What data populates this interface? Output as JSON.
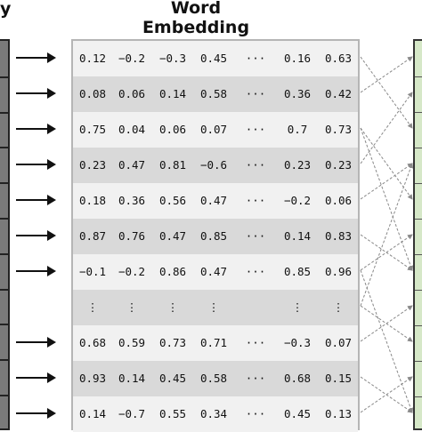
{
  "header": {
    "title": "Word Embedding",
    "left_fragment": "y"
  },
  "matrix": {
    "rows": [
      [
        "0.12",
        "−0.2",
        "−0.3",
        "0.45",
        "···",
        "0.16",
        "0.63"
      ],
      [
        "0.08",
        "0.06",
        "0.14",
        "0.58",
        "···",
        "0.36",
        "0.42"
      ],
      [
        "0.75",
        "0.04",
        "0.06",
        "0.07",
        "···",
        "0.7",
        "0.73"
      ],
      [
        "0.23",
        "0.47",
        "0.81",
        "−0.6",
        "···",
        "0.23",
        "0.23"
      ],
      [
        "0.18",
        "0.36",
        "0.56",
        "0.47",
        "···",
        "−0.2",
        "0.06"
      ],
      [
        "0.87",
        "0.76",
        "0.47",
        "0.85",
        "···",
        "0.14",
        "0.83"
      ],
      [
        "−0.1",
        "−0.2",
        "0.86",
        "0.47",
        "···",
        "0.85",
        "0.96"
      ],
      [
        "⋮",
        "⋮",
        "⋮",
        "⋮",
        "",
        "⋮",
        "⋮"
      ],
      [
        "0.68",
        "0.59",
        "0.73",
        "0.71",
        "···",
        "−0.3",
        "0.07"
      ],
      [
        "0.93",
        "0.14",
        "0.45",
        "0.58",
        "···",
        "0.68",
        "0.15"
      ],
      [
        "0.14",
        "−0.7",
        "0.55",
        "0.34",
        "···",
        "0.45",
        "0.13"
      ]
    ]
  },
  "colors": {
    "left_fill": "#7a7a7a",
    "right_fill": "#d6e8c8",
    "row_light": "#f1f1f1",
    "row_dark": "#d9d9d9",
    "arrow": "#111111",
    "link": "#888888"
  },
  "icons": {
    "input_arrow": "arrow-right-icon",
    "link_arrow": "dashed-arrow-icon"
  }
}
